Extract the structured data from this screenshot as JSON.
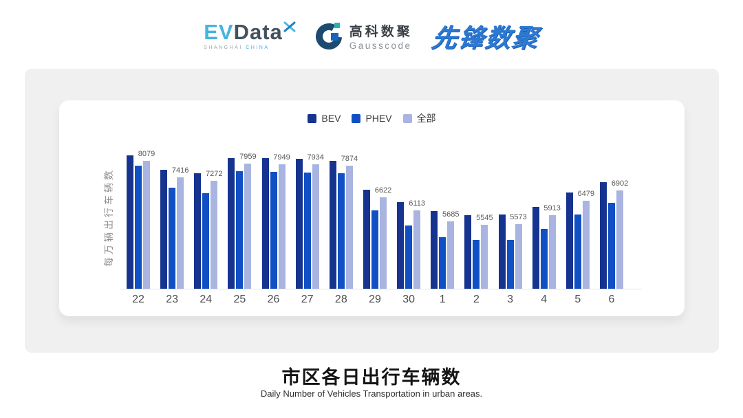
{
  "header": {
    "evdata": {
      "ev": "EV",
      "data": "Data",
      "sub_left": "SHANGHAI",
      "sub_right": "CHINA"
    },
    "gausscode": {
      "cn": "高科数聚",
      "en": "Gausscode"
    },
    "pioneer": {
      "text": "先锋数聚"
    }
  },
  "chart_data": {
    "type": "bar",
    "title": "市区各日出行车辆数",
    "subtitle": "Daily Number of Vehicles Transportation in urban areas.",
    "ylabel": "每万辆出行车辆数",
    "categories": [
      "22",
      "23",
      "24",
      "25",
      "26",
      "27",
      "28",
      "29",
      "30",
      "1",
      "2",
      "3",
      "4",
      "5",
      "6"
    ],
    "series": [
      {
        "name": "BEV",
        "color": "#16338f",
        "values": [
          8290,
          7710,
          7580,
          8190,
          8170,
          8150,
          8080,
          6940,
          6450,
          6090,
          5920,
          5950,
          6250,
          6810,
          7240
        ]
      },
      {
        "name": "PHEV",
        "color": "#1150c4",
        "values": [
          7870,
          7000,
          6790,
          7660,
          7640,
          7620,
          7590,
          6110,
          5520,
          5040,
          4930,
          4930,
          5360,
          5950,
          6400
        ]
      },
      {
        "name": "全部",
        "color": "#a9b4e0",
        "values": [
          8079,
          7416,
          7272,
          7959,
          7949,
          7934,
          7874,
          6622,
          6113,
          5685,
          5545,
          5573,
          5913,
          6479,
          6902
        ]
      }
    ],
    "data_labels": [
      8079,
      7416,
      7272,
      7959,
      7949,
      7934,
      7874,
      6622,
      6113,
      5685,
      5545,
      5573,
      5913,
      6479,
      6902
    ],
    "label_series": "全部",
    "value_axis": {
      "min": 3000,
      "max": 8400,
      "gridlines": false
    },
    "legend": {
      "position": "top-center",
      "items": [
        "BEV",
        "PHEV",
        "全部"
      ]
    },
    "colors": {
      "axis_line": "#e4e4e4",
      "tick_label": "#4d4d4d",
      "data_label": "#575757"
    }
  },
  "footer": {
    "title": "市区各日出行车辆数",
    "subtitle": "Daily Number of Vehicles Transportation in urban areas."
  }
}
